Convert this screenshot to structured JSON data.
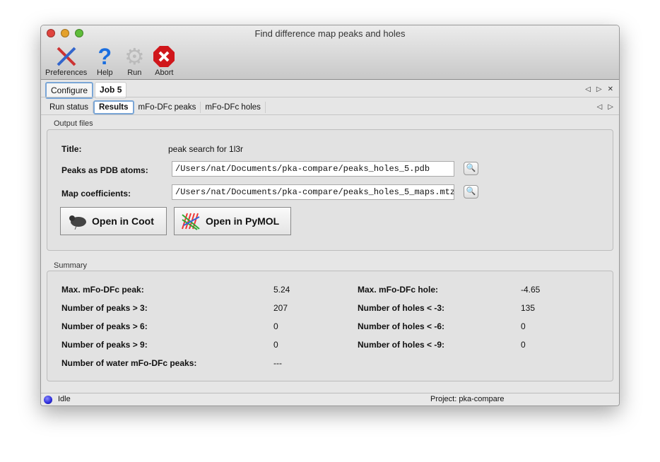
{
  "window": {
    "title": "Find difference map peaks and holes"
  },
  "toolbar": {
    "preferences": "Preferences",
    "help": "Help",
    "run": "Run",
    "abort": "Abort"
  },
  "tabs": {
    "configure": "Configure",
    "job": "Job 5"
  },
  "subtabs": {
    "run_status": "Run status",
    "results": "Results",
    "peaks": "mFo-DFc peaks",
    "holes": "mFo-DFc holes"
  },
  "output": {
    "group_label": "Output files",
    "title_label": "Title:",
    "title_value": "peak search for 1l3r",
    "pdb_label": "Peaks as PDB atoms:",
    "pdb_value": "/Users/nat/Documents/pka-compare/peaks_holes_5.pdb",
    "map_label": "Map coefficients:",
    "map_value": "/Users/nat/Documents/pka-compare/peaks_holes_5_maps.mtz",
    "coot_button": "Open in Coot",
    "pymol_button": "Open in PyMOL"
  },
  "summary": {
    "group_label": "Summary",
    "left": [
      {
        "label": "Max. mFo-DFc peak:",
        "value": "5.24"
      },
      {
        "label": "Number of peaks > 3:",
        "value": "207"
      },
      {
        "label": "Number of peaks > 6:",
        "value": "0"
      },
      {
        "label": "Number of peaks > 9:",
        "value": "0"
      },
      {
        "label": "Number of water mFo-DFc peaks:",
        "value": "---"
      }
    ],
    "right": [
      {
        "label": "Max. mFo-DFc hole:",
        "value": "-4.65"
      },
      {
        "label": "Number of holes < -3:",
        "value": "135"
      },
      {
        "label": "Number of holes < -6:",
        "value": "0"
      },
      {
        "label": "Number of holes < -9:",
        "value": "0"
      }
    ]
  },
  "status": {
    "state": "Idle",
    "project": "Project: pka-compare",
    "indicator_color": "#2a2ad8"
  }
}
